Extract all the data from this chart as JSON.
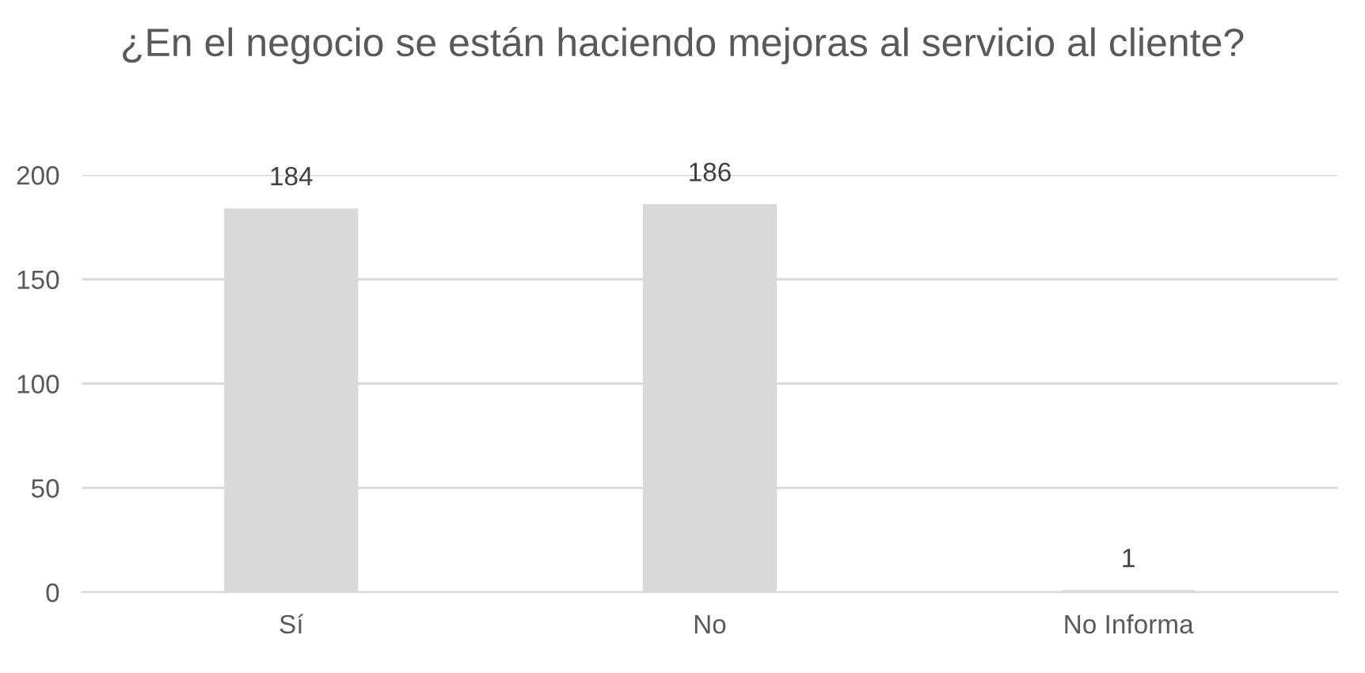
{
  "chart_data": {
    "type": "bar",
    "title": "¿En el negocio se están haciendo mejoras al servicio al cliente?",
    "categories": [
      "Sí",
      "No",
      "No Informa"
    ],
    "values": [
      184,
      186,
      1
    ],
    "color": "#d9d9d9",
    "ylim": [
      0,
      200
    ],
    "yticks": [
      0,
      50,
      100,
      150,
      200
    ],
    "grid": "y",
    "data_labels": true,
    "legend": false
  }
}
